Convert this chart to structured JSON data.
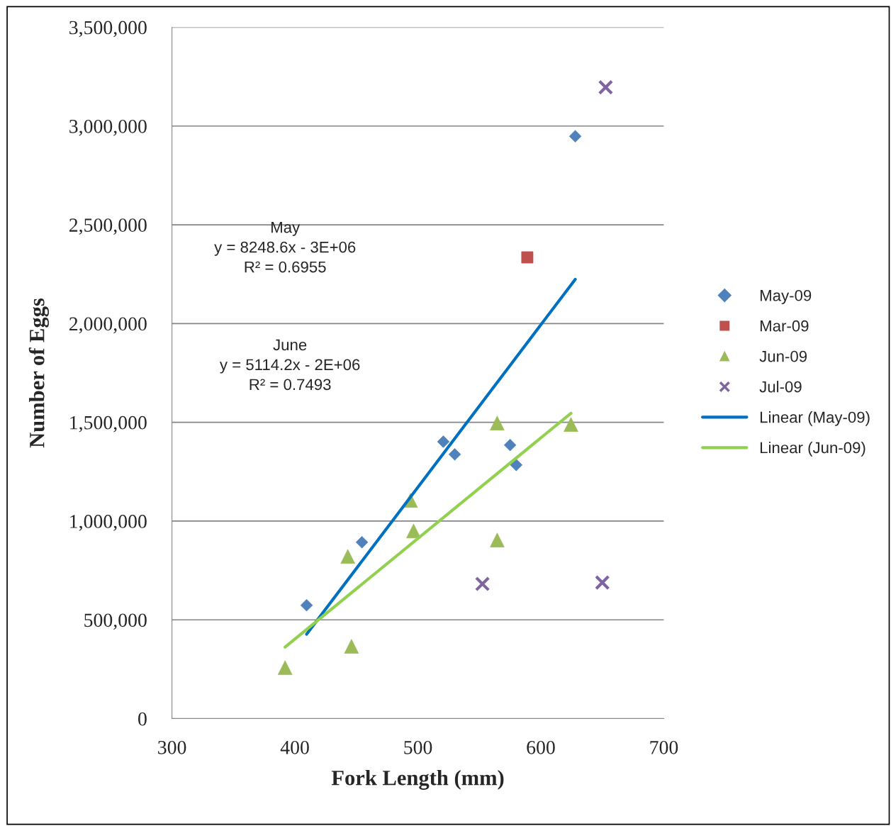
{
  "chart_data": {
    "type": "scatter",
    "xlabel": "Fork Length (mm)",
    "ylabel": "Number of Eggs",
    "xlim": [
      300,
      700
    ],
    "xticks": [
      300,
      400,
      500,
      600,
      700
    ],
    "ylim": [
      0,
      3500000
    ],
    "yticks": [
      {
        "value": 0,
        "label": "0"
      },
      {
        "value": 500000,
        "label": "500,000"
      },
      {
        "value": 1000000,
        "label": "1,000,000"
      },
      {
        "value": 1500000,
        "label": "1,500,000"
      },
      {
        "value": 2000000,
        "label": "2,000,000"
      },
      {
        "value": 2500000,
        "label": "2,500,000"
      },
      {
        "value": 3000000,
        "label": "3,000,000"
      },
      {
        "value": 3500000,
        "label": "3,500,000"
      }
    ],
    "grid": "y",
    "legend": "right",
    "series": [
      {
        "name": "May-09",
        "marker": "diamond",
        "color": "#4f81bd",
        "x": [
          409.5,
          454.5,
          520.7,
          530,
          575,
          580,
          628
        ],
        "values": [
          574000,
          893000,
          1402000,
          1338000,
          1385000,
          1284000,
          2948000
        ]
      },
      {
        "name": "Mar-09",
        "marker": "square",
        "color": "#c0504d",
        "x": [
          589
        ],
        "values": [
          2335000
        ]
      },
      {
        "name": "Jun-09",
        "marker": "triangle",
        "color": "#9bbb59",
        "x": [
          392,
          443,
          446,
          494,
          496.5,
          564.5,
          564.5,
          624.5
        ],
        "values": [
          258000,
          821000,
          366000,
          1105000,
          950000,
          1496000,
          904000,
          1489000
        ]
      },
      {
        "name": "Jul-09",
        "marker": "cross",
        "color": "#8064a2",
        "x": [
          552.5,
          652.7,
          650
        ],
        "values": [
          682000,
          3196000,
          689000
        ]
      },
      {
        "name": "Linear (May-09)",
        "type": "line",
        "marker": "none",
        "line_style": "solid",
        "color": "#0070c0",
        "x": [
          409.5,
          628
        ],
        "values": [
          427000,
          2224000
        ]
      },
      {
        "name": "Linear (Jun-09)",
        "type": "line",
        "marker": "none",
        "line_style": "solid",
        "color": "#92d050",
        "x": [
          392,
          624.5
        ],
        "values": [
          362000,
          1546000
        ]
      }
    ],
    "annotations": [
      "May\ny = 8248.6x - 3E+06\nR² = 0.6955",
      "June\ny = 5114.2x - 2E+06\nR² = 0.7493"
    ]
  }
}
